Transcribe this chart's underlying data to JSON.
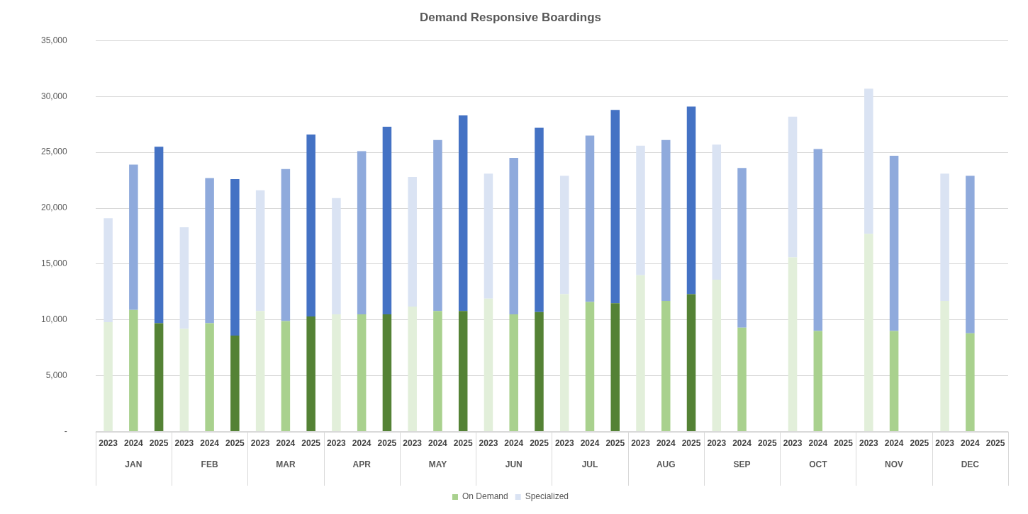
{
  "chart_data": {
    "type": "bar",
    "title": "Demand Responsive Boardings",
    "stacked": true,
    "categories": [
      "2023",
      "2024",
      "2025",
      "2023",
      "2024",
      "2025",
      "2023",
      "2024",
      "2025",
      "2023",
      "2024",
      "2025",
      "2023",
      "2024",
      "2025",
      "2023",
      "2024",
      "2025",
      "2023",
      "2024",
      "2025",
      "2023",
      "2024",
      "2025",
      "2023",
      "2024",
      "2025",
      "2023",
      "2024",
      "2025",
      "2023",
      "2024",
      "2025",
      "2023",
      "2024",
      "2025"
    ],
    "annotations": [
      "JAN",
      "FEB",
      "MAR",
      "APR",
      "MAY",
      "JUN",
      "JUL",
      "AUG",
      "SEP",
      "OCT",
      "NOV",
      "DEC"
    ],
    "series": [
      {
        "name": "On Demand",
        "color": "#a9d18e",
        "colors": [
          "#e2efda",
          "#a9d18e",
          "#548235",
          "#e2efda",
          "#a9d18e",
          "#548235",
          "#e2efda",
          "#a9d18e",
          "#548235",
          "#e2efda",
          "#a9d18e",
          "#548235",
          "#e2efda",
          "#a9d18e",
          "#548235",
          "#e2efda",
          "#a9d18e",
          "#548235",
          "#e2efda",
          "#a9d18e",
          "#548235",
          "#e2efda",
          "#a9d18e",
          "#548235",
          "#e2efda",
          "#a9d18e",
          "#548235",
          "#e2efda",
          "#a9d18e",
          "#548235",
          "#e2efda",
          "#a9d18e",
          "#548235",
          "#e2efda",
          "#a9d18e",
          "#548235"
        ],
        "values": [
          9800,
          10900,
          9700,
          9200,
          9700,
          8600,
          10800,
          9900,
          10300,
          10500,
          10500,
          10500,
          11200,
          10800,
          10800,
          11900,
          10500,
          10700,
          12300,
          11600,
          11500,
          14000,
          11700,
          12300,
          13600,
          9300,
          null,
          15600,
          9000,
          null,
          17700,
          9000,
          null,
          11700,
          8800,
          null
        ]
      },
      {
        "name": "Specialized",
        "color": "#dae3f3",
        "colors": [
          "#dae3f3",
          "#8faadc",
          "#4472c4",
          "#dae3f3",
          "#8faadc",
          "#4472c4",
          "#dae3f3",
          "#8faadc",
          "#4472c4",
          "#dae3f3",
          "#8faadc",
          "#4472c4",
          "#dae3f3",
          "#8faadc",
          "#4472c4",
          "#dae3f3",
          "#8faadc",
          "#4472c4",
          "#dae3f3",
          "#8faadc",
          "#4472c4",
          "#dae3f3",
          "#8faadc",
          "#4472c4",
          "#dae3f3",
          "#8faadc",
          "#4472c4",
          "#dae3f3",
          "#8faadc",
          "#4472c4",
          "#dae3f3",
          "#8faadc",
          "#4472c4",
          "#dae3f3",
          "#8faadc",
          "#4472c4"
        ],
        "values": [
          9300,
          13000,
          15800,
          9100,
          13000,
          14000,
          10800,
          13600,
          16300,
          10400,
          14600,
          16800,
          11600,
          15300,
          17500,
          11200,
          14000,
          16500,
          10600,
          14900,
          17300,
          11600,
          14400,
          16800,
          12100,
          14300,
          null,
          12600,
          16300,
          null,
          13000,
          15700,
          null,
          11400,
          14100,
          null
        ]
      }
    ],
    "ylim": [
      0,
      35000
    ],
    "yticks": [
      {
        "value": 0,
        "label": "-"
      },
      {
        "value": 5000,
        "label": "5,000"
      },
      {
        "value": 10000,
        "label": "10,000"
      },
      {
        "value": 15000,
        "label": "15,000"
      },
      {
        "value": 20000,
        "label": "20,000"
      },
      {
        "value": 25000,
        "label": "25,000"
      },
      {
        "value": 30000,
        "label": "30,000"
      },
      {
        "value": 35000,
        "label": "35,000"
      }
    ],
    "grid": "y",
    "legend": "bottom"
  }
}
